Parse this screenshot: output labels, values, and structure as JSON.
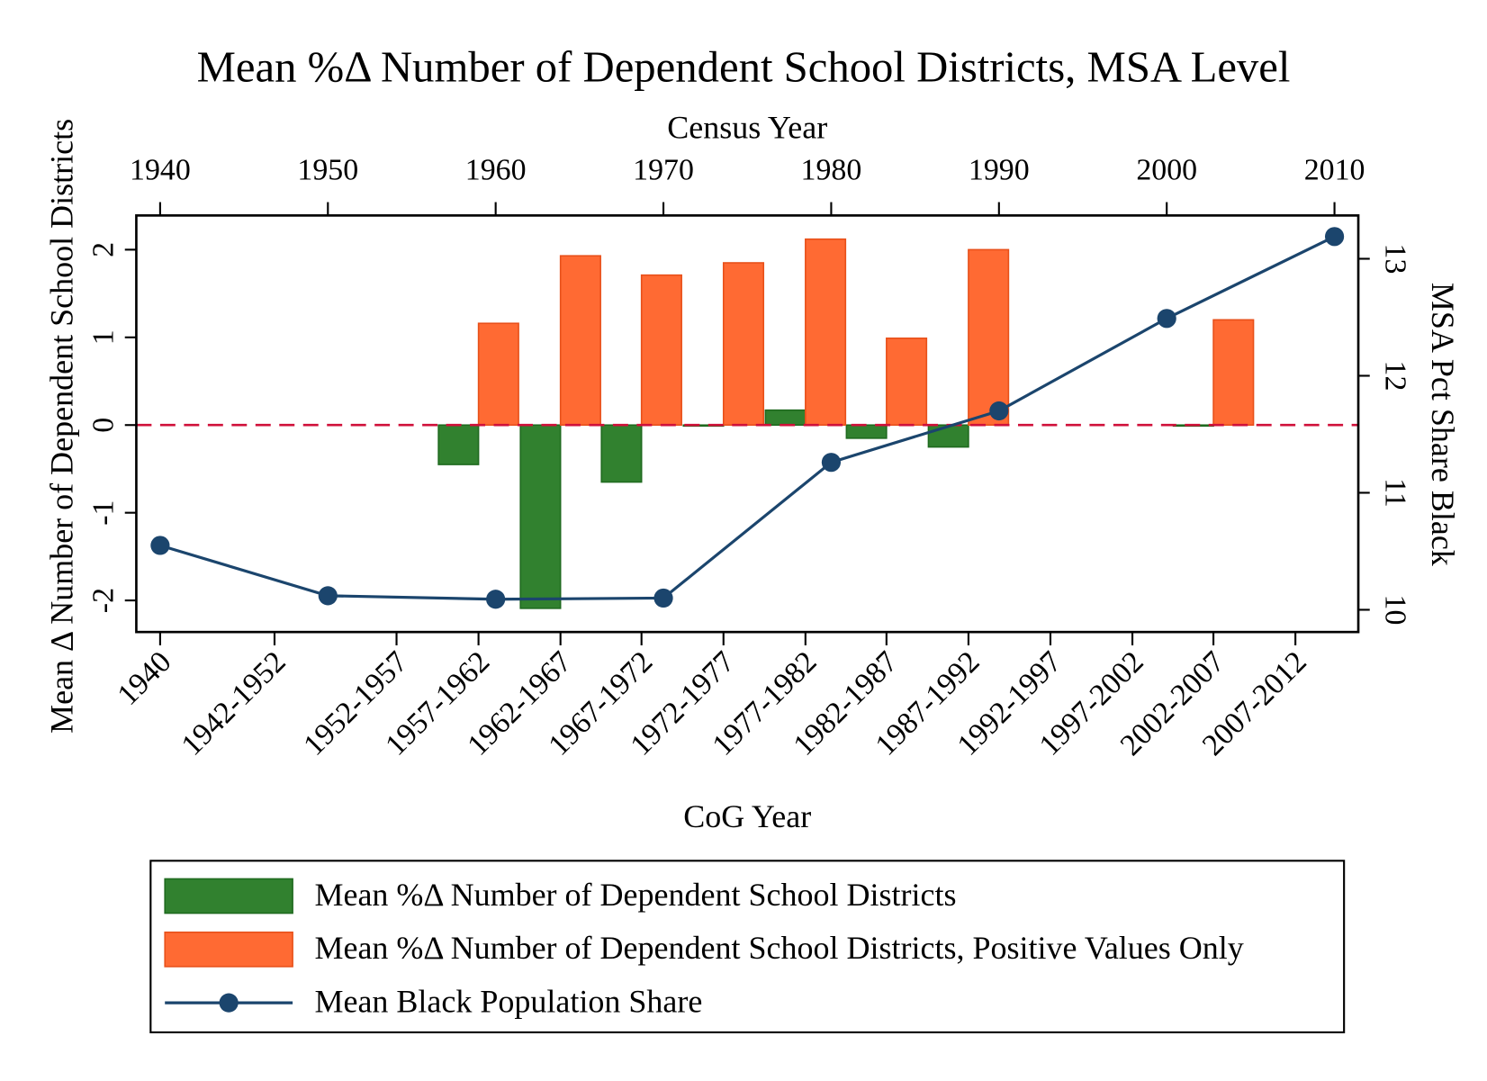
{
  "chart_data": {
    "type": "bar",
    "title": "Mean %Δ Number of Dependent School Districts, MSA Level",
    "x_label": "CoG Year",
    "x2_label": "Census Year",
    "y_label": "Mean Δ Number of Dependent School Districts",
    "y2_label": "MSA Pct Share Black",
    "categories": [
      "1940",
      "1942-1952",
      "1952-1957",
      "1957-1962",
      "1962-1967",
      "1967-1972",
      "1972-1977",
      "1977-1982",
      "1982-1987",
      "1987-1992",
      "1992-1997",
      "1997-2002",
      "2002-2007",
      "2007-2012"
    ],
    "series": [
      {
        "name": "Mean %Δ Number of Dependent School Districts",
        "color": "#31812f",
        "values": [
          null,
          null,
          null,
          -0.45,
          -2.09,
          -0.65,
          0,
          0.17,
          -0.15,
          -0.25,
          null,
          null,
          0,
          null
        ]
      },
      {
        "name": "Mean %Δ Number of Dependent School Districts, Positive Values Only",
        "color": "#ff6a33",
        "values": [
          null,
          null,
          null,
          1.16,
          1.93,
          1.71,
          1.85,
          2.12,
          0.99,
          2.0,
          null,
          null,
          1.2,
          null
        ]
      },
      {
        "name": "Mean Black Population Share",
        "color": "#1b456d",
        "type": "line",
        "axis": "y2",
        "x": [
          1940,
          1950,
          1960,
          1970,
          1980,
          1990,
          2000,
          2010
        ],
        "values": [
          10.55,
          10.12,
          10.09,
          10.1,
          11.26,
          11.7,
          12.49,
          13.19
        ]
      }
    ],
    "ylim": [
      -2.36,
      2.39
    ],
    "yticks": [
      -2,
      -1,
      0,
      1,
      2
    ],
    "y2lim": [
      9.81,
      13.37
    ],
    "y2ticks": [
      10,
      11,
      12,
      13
    ],
    "x2lim": [
      1938.58,
      2011.42
    ],
    "x2ticks": [
      1940,
      1950,
      1960,
      1970,
      1980,
      1990,
      2000,
      2010
    ],
    "reference_line": 0,
    "legend": "bottom"
  }
}
